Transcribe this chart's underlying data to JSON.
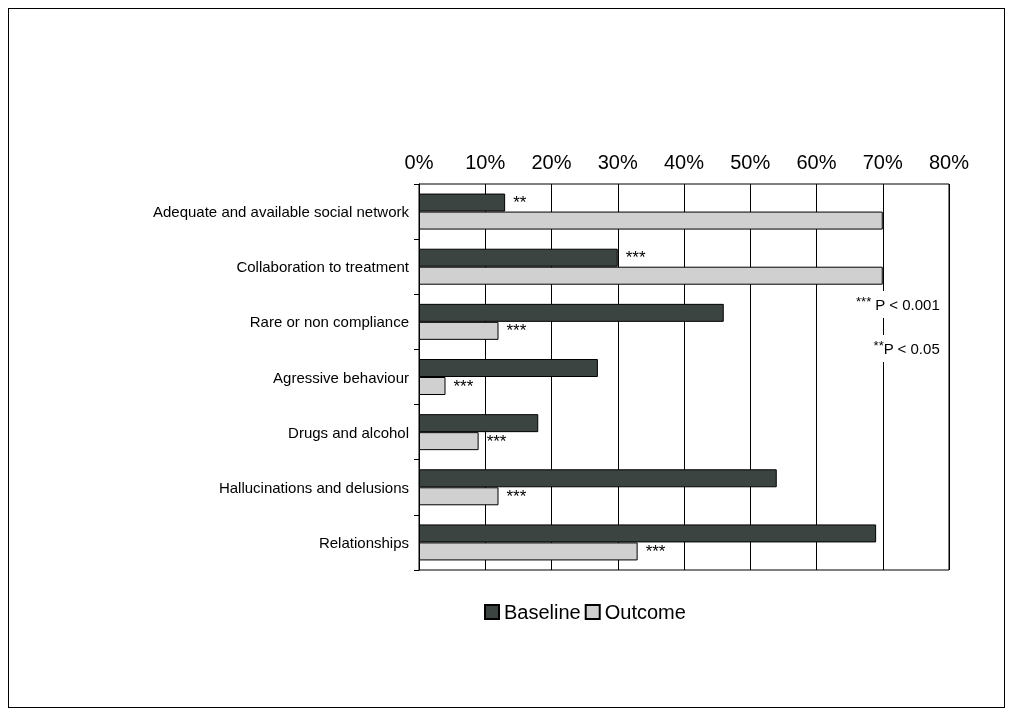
{
  "chart_data": {
    "type": "bar",
    "orientation": "horizontal",
    "categories": [
      "Adequate and available social network",
      "Collaboration to treatment",
      "Rare or non compliance",
      "Agressive behaviour",
      "Drugs and alcohol",
      "Hallucinations and delusions",
      "Relationships"
    ],
    "series": [
      {
        "name": "Baseline",
        "color": "#3c4442",
        "values": [
          13,
          30,
          46,
          27,
          18,
          54,
          69
        ]
      },
      {
        "name": "Outcome",
        "color": "#d0d0d0",
        "values": [
          70,
          70,
          12,
          4,
          9,
          12,
          33
        ]
      }
    ],
    "xlim": [
      0,
      80
    ],
    "xticks": [
      {
        "value": 0,
        "label": "0%"
      },
      {
        "value": 10,
        "label": "10%"
      },
      {
        "value": 20,
        "label": "20%"
      },
      {
        "value": 30,
        "label": "30%"
      },
      {
        "value": 40,
        "label": "40%"
      },
      {
        "value": 50,
        "label": "50%"
      },
      {
        "value": 60,
        "label": "60%"
      },
      {
        "value": 70,
        "label": "70%"
      },
      {
        "value": 80,
        "label": "80%"
      }
    ],
    "grid": "x",
    "legend": "bottom",
    "annotations": [
      {
        "text": "**",
        "x": 13,
        "y": "Adequate and available social network"
      },
      {
        "text": "***",
        "x": 30,
        "y": "Collaboration to treatment"
      },
      {
        "text": "***",
        "x": 12,
        "y": "Rare or non compliance"
      },
      {
        "text": "***",
        "x": 4,
        "y": "Agressive behaviour"
      },
      {
        "text": "***",
        "x": 9,
        "y": "Drugs and alcohol"
      },
      {
        "text": "***",
        "x": 12,
        "y": "Hallucinations and delusions"
      },
      {
        "text": "***",
        "x": 33,
        "y": "Relationships"
      },
      "$^{***}$ P < 0.001",
      "$^{**}$P < 0.05"
    ]
  }
}
